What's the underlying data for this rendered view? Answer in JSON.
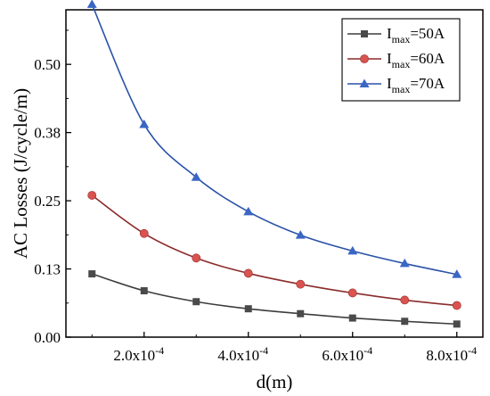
{
  "chart_data": {
    "type": "line",
    "xlabel": "d(m)",
    "ylabel": "AC Losses (J/cycle/m)",
    "xlim": [
      5e-05,
      0.00085
    ],
    "ylim": [
      0,
      0.6
    ],
    "x": [
      0.0001,
      0.0002,
      0.0003,
      0.0004,
      0.0005,
      0.0006,
      0.0007,
      0.0008
    ],
    "x_ticks": [
      {
        "value": 0.0002,
        "mant": "2.0x10",
        "exp": "-4"
      },
      {
        "value": 0.0004,
        "mant": "4.0x10",
        "exp": "-4"
      },
      {
        "value": 0.0006,
        "mant": "6.0x10",
        "exp": "-4"
      },
      {
        "value": 0.0008,
        "mant": "8.0x10",
        "exp": "-4"
      }
    ],
    "y_ticks": [
      {
        "value": 0.0,
        "label": "0.00"
      },
      {
        "value": 0.125,
        "label": "0.13"
      },
      {
        "value": 0.25,
        "label": "0.25"
      },
      {
        "value": 0.375,
        "label": "0.38"
      },
      {
        "value": 0.5,
        "label": "0.50"
      }
    ],
    "grid": false,
    "legend_position": "top-right",
    "series": [
      {
        "name_main": "I",
        "name_sub": "max",
        "name_rest": "=50A",
        "marker": "square",
        "color": "#3d3d3d",
        "markerColor": "#4a4a4a",
        "values": [
          0.116,
          0.085,
          0.065,
          0.052,
          0.043,
          0.035,
          0.029,
          0.024
        ]
      },
      {
        "name_main": "I",
        "name_sub": "max",
        "name_rest": "=60A",
        "marker": "circle",
        "color": "#8b2a2a",
        "markerColor": "#d9534f",
        "values": [
          0.26,
          0.19,
          0.145,
          0.117,
          0.097,
          0.081,
          0.068,
          0.058
        ]
      },
      {
        "name_main": "I",
        "name_sub": "max",
        "name_rest": "=70A",
        "marker": "triangle",
        "color": "#2a52a8",
        "markerColor": "#3a66c4",
        "values": [
          0.61,
          0.39,
          0.293,
          0.23,
          0.187,
          0.158,
          0.135,
          0.115
        ]
      }
    ]
  }
}
